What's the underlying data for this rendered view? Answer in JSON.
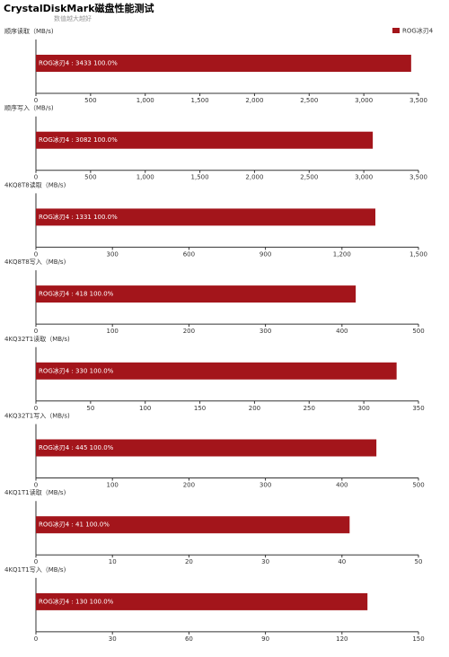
{
  "title": "CrystalDiskMark磁盘性能测试",
  "subtitle": "数值越大越好",
  "chart_data": [
    {
      "type": "bar",
      "orientation": "horizontal",
      "axis_label": "顺序读取（MB/s)",
      "legend": "top-right",
      "series": [
        {
          "name": "ROG冰刃4",
          "color": "#a3151b",
          "values": [
            3433
          ],
          "value_labels": [
            "ROG冰刃4 : 3433  100.0%"
          ]
        }
      ],
      "xlim": [
        0,
        3500
      ],
      "xticks": [
        0,
        500,
        {
          "value": 1000,
          "label": "1,000"
        },
        {
          "value": 1500,
          "label": "1,500"
        },
        {
          "value": 2000,
          "label": "2,000"
        },
        {
          "value": 2500,
          "label": "2,500"
        },
        {
          "value": 3000,
          "label": "3,000"
        },
        {
          "value": 3500,
          "label": "3,500"
        }
      ]
    },
    {
      "type": "bar",
      "orientation": "horizontal",
      "axis_label": "顺序写入（MB/s)",
      "series": [
        {
          "name": "ROG冰刃4",
          "color": "#a3151b",
          "values": [
            3082
          ],
          "value_labels": [
            "ROG冰刃4 : 3082  100.0%"
          ]
        }
      ],
      "xlim": [
        0,
        3500
      ],
      "xticks": [
        0,
        500,
        {
          "value": 1000,
          "label": "1,000"
        },
        {
          "value": 1500,
          "label": "1,500"
        },
        {
          "value": 2000,
          "label": "2,000"
        },
        {
          "value": 2500,
          "label": "2,500"
        },
        {
          "value": 3000,
          "label": "3,000"
        },
        {
          "value": 3500,
          "label": "3,500"
        }
      ]
    },
    {
      "type": "bar",
      "orientation": "horizontal",
      "axis_label": "4KQ8T8读取（MB/s)",
      "series": [
        {
          "name": "ROG冰刃4",
          "color": "#a3151b",
          "values": [
            1331
          ],
          "value_labels": [
            "ROG冰刃4 : 1331  100.0%"
          ]
        }
      ],
      "xlim": [
        0,
        1500
      ],
      "xticks": [
        0,
        300,
        600,
        900,
        {
          "value": 1200,
          "label": "1,200"
        },
        {
          "value": 1500,
          "label": "1,500"
        }
      ]
    },
    {
      "type": "bar",
      "orientation": "horizontal",
      "axis_label": "4KQ8T8写入（MB/s)",
      "series": [
        {
          "name": "ROG冰刃4",
          "color": "#a3151b",
          "values": [
            418
          ],
          "value_labels": [
            "ROG冰刃4 : 418  100.0%"
          ]
        }
      ],
      "xlim": [
        0,
        500
      ],
      "xticks": [
        0,
        100,
        200,
        300,
        400,
        500
      ]
    },
    {
      "type": "bar",
      "orientation": "horizontal",
      "axis_label": "4KQ32T1读取（MB/s)",
      "series": [
        {
          "name": "ROG冰刃4",
          "color": "#a3151b",
          "values": [
            330
          ],
          "value_labels": [
            "ROG冰刃4 : 330  100.0%"
          ]
        }
      ],
      "xlim": [
        0,
        350
      ],
      "xticks": [
        0,
        50,
        100,
        150,
        200,
        250,
        300,
        350
      ]
    },
    {
      "type": "bar",
      "orientation": "horizontal",
      "axis_label": "4KQ32T1写入（MB/s)",
      "series": [
        {
          "name": "ROG冰刃4",
          "color": "#a3151b",
          "values": [
            445
          ],
          "value_labels": [
            "ROG冰刃4 : 445  100.0%"
          ]
        }
      ],
      "xlim": [
        0,
        500
      ],
      "xticks": [
        0,
        100,
        200,
        300,
        400,
        500
      ]
    },
    {
      "type": "bar",
      "orientation": "horizontal",
      "axis_label": "4KQ1T1读取（MB/s)",
      "series": [
        {
          "name": "ROG冰刃4",
          "color": "#a3151b",
          "values": [
            41
          ],
          "value_labels": [
            "ROG冰刃4 : 41  100.0%"
          ]
        }
      ],
      "xlim": [
        0,
        50
      ],
      "xticks": [
        0,
        10,
        20,
        30,
        40,
        50
      ]
    },
    {
      "type": "bar",
      "orientation": "horizontal",
      "axis_label": "4KQ1T1写入（MB/s)",
      "series": [
        {
          "name": "ROG冰刃4",
          "color": "#a3151b",
          "values": [
            130
          ],
          "value_labels": [
            "ROG冰刃4 : 130  100.0%"
          ]
        }
      ],
      "xlim": [
        0,
        150
      ],
      "xticks": [
        0,
        30,
        60,
        90,
        120,
        150
      ]
    }
  ]
}
